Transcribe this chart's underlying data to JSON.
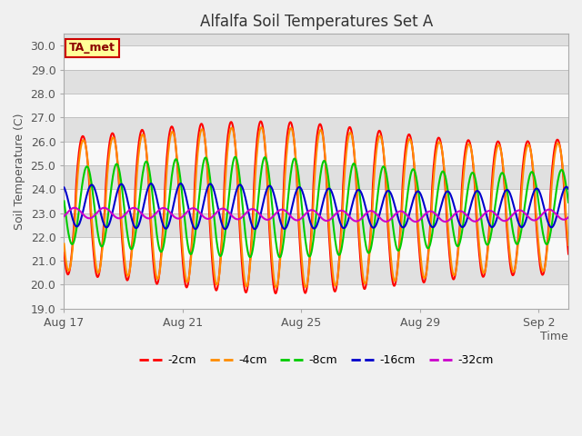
{
  "title": "Alfalfa Soil Temperatures Set A",
  "xlabel": "Time",
  "ylabel": "Soil Temperature (C)",
  "ylim": [
    19.0,
    30.5
  ],
  "yticks": [
    19.0,
    20.0,
    21.0,
    22.0,
    23.0,
    24.0,
    25.0,
    26.0,
    27.0,
    28.0,
    29.0,
    30.0
  ],
  "background_color": "#f0f0f0",
  "plot_bg_color": "#e0e0e0",
  "white_band_color": "#f8f8f8",
  "label_box_text": "TA_met",
  "label_box_bg": "#ffff99",
  "label_box_edge": "#cc0000",
  "series_colors": [
    "#ff0000",
    "#ff8c00",
    "#00cc00",
    "#0000cc",
    "#cc00cc"
  ],
  "series_labels": [
    "-2cm",
    "-4cm",
    "-8cm",
    "-16cm",
    "-32cm"
  ],
  "series_linewidths": [
    1.5,
    1.5,
    1.5,
    1.5,
    1.5
  ],
  "x_tick_labels": [
    "Aug 17",
    "Aug 21",
    "Aug 25",
    "Aug 29",
    "Sep 2"
  ],
  "x_tick_positions": [
    0,
    4,
    8,
    12,
    16
  ],
  "n_days": 17,
  "samples_per_day": 48,
  "title_fontsize": 12,
  "axis_label_fontsize": 9,
  "tick_fontsize": 9,
  "legend_fontsize": 9
}
